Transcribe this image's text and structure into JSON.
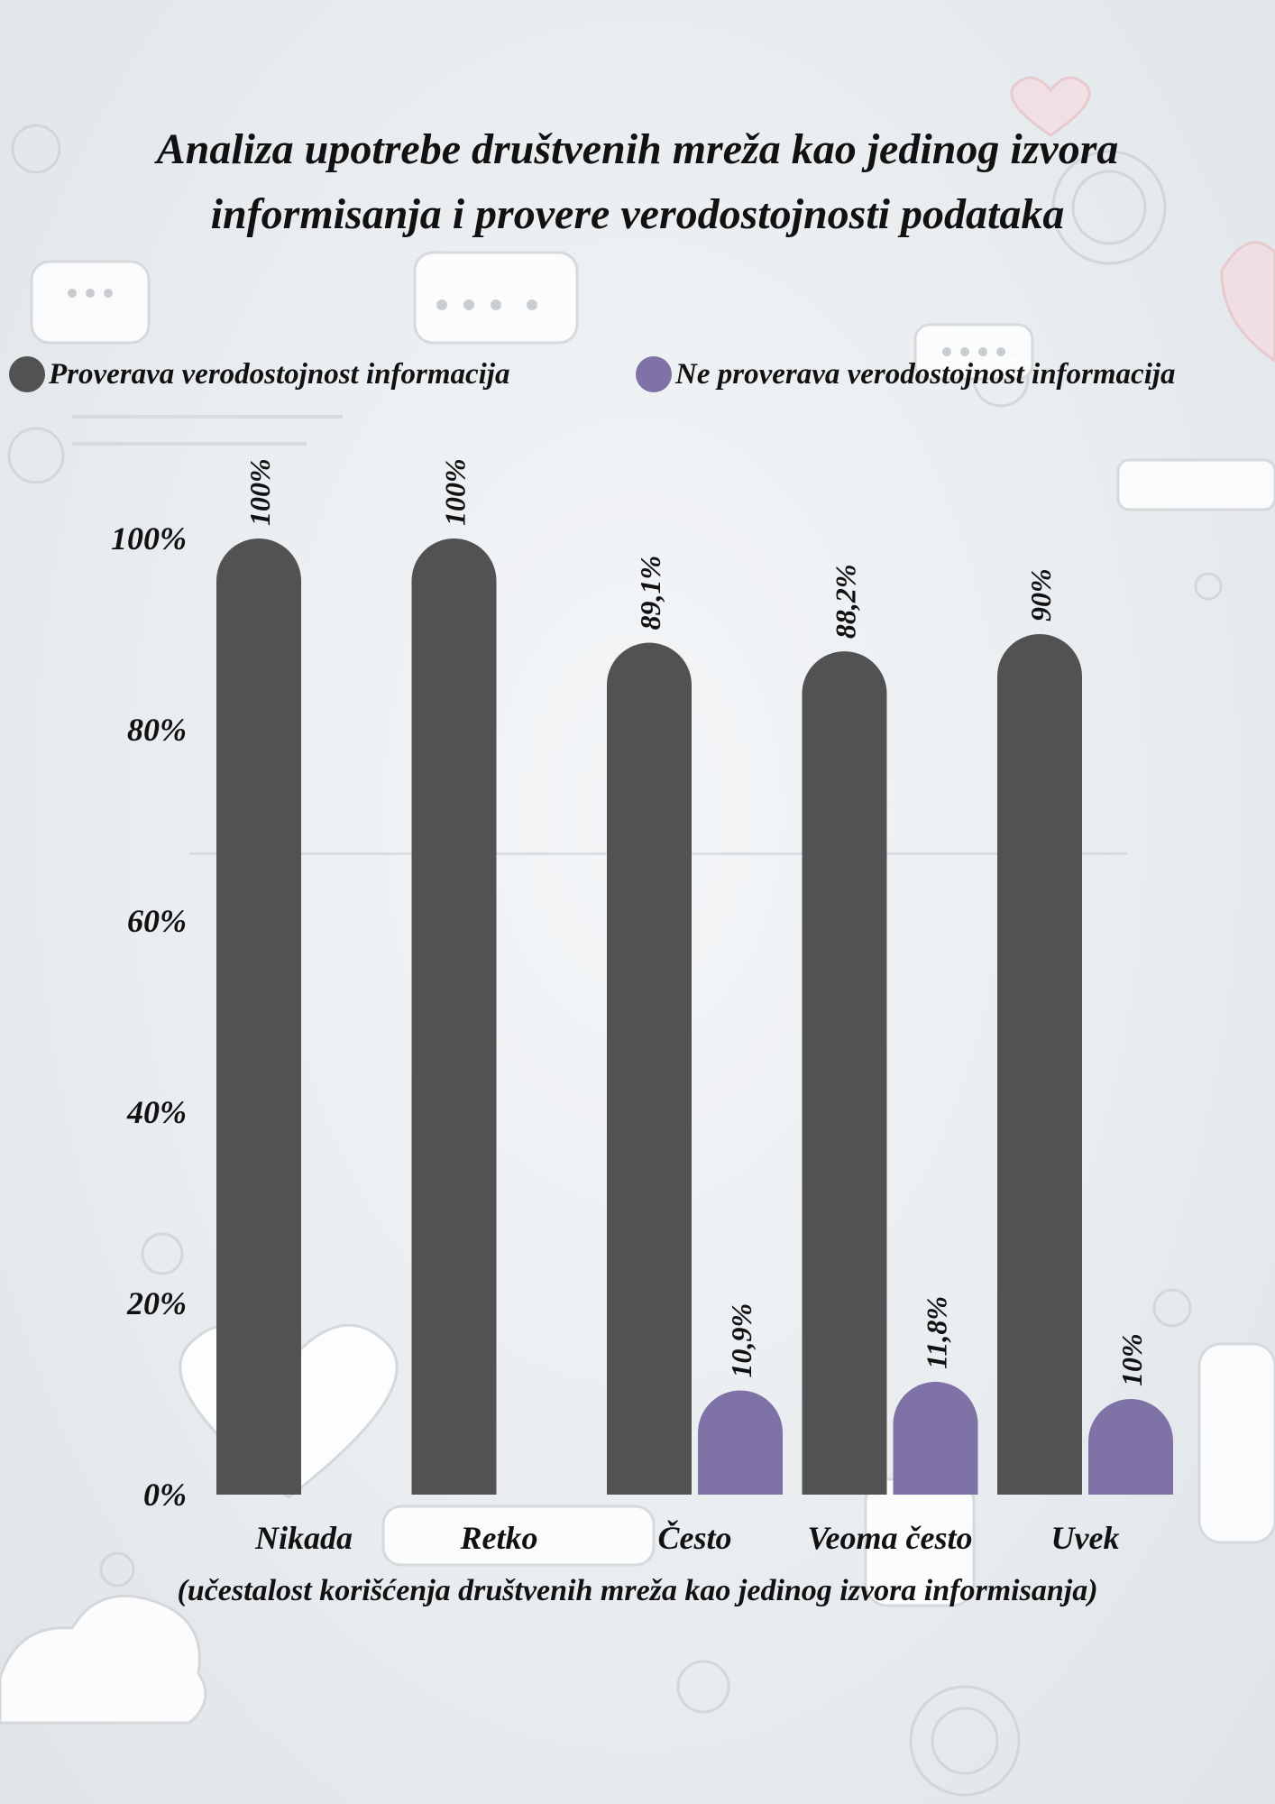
{
  "title_lines": [
    "Analiza upotrebe društvenih mreža kao jedinog izvora",
    "informisanja i provere verodostojnosti podataka"
  ],
  "colors": {
    "series_1": "#525252",
    "series_2": "#7e72a6"
  },
  "chart_data": {
    "type": "bar",
    "title": "Analiza upotrebe društvenih mreža kao jedinog izvora informisanja i provere verodostojnosti podataka",
    "xlabel": "(učestalost korišćenja društvenih mreža kao jedinog izvora informisanja)",
    "ylabel": "",
    "ylim": [
      0,
      100
    ],
    "yticks": [
      "0%",
      "20%",
      "40%",
      "60%",
      "80%",
      "100%"
    ],
    "ytick_values": [
      0,
      20,
      40,
      60,
      80,
      100
    ],
    "categories": [
      "Nikada",
      "Retko",
      "Često",
      "Veoma često",
      "Uvek"
    ],
    "legend_position": "top",
    "grid": false,
    "series": [
      {
        "name": "Proverava verodostojnost informacija",
        "values": [
          100,
          100,
          89.1,
          88.2,
          90
        ],
        "labels": [
          "100%",
          "100%",
          "89,1%",
          "88,2%",
          "90%"
        ]
      },
      {
        "name": "Ne proverava verodostojnost informacija",
        "values": [
          null,
          null,
          10.9,
          11.8,
          10
        ],
        "labels": [
          "",
          "",
          "10,9%",
          "11,8%",
          "10%"
        ]
      }
    ]
  }
}
